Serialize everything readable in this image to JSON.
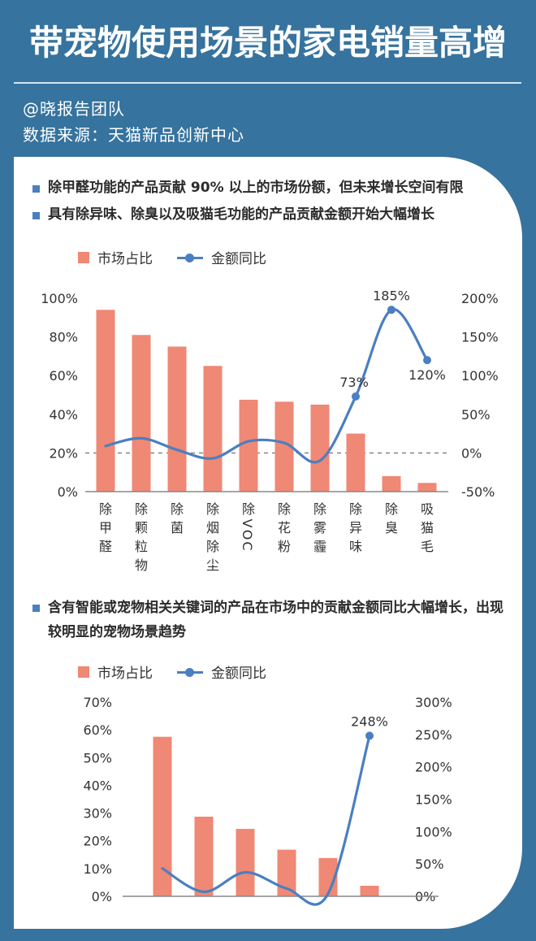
{
  "header": {
    "title": "带宠物使用场景的家电销量高增",
    "author": "@晓报告团队",
    "source": "数据来源：天猫新品创新中心"
  },
  "colors": {
    "background": "#36739e",
    "divider": "#cfe6f5",
    "bar": "#ef8874",
    "line": "#4a7fc1",
    "bullet": "#4a7fc1",
    "text": "#333333"
  },
  "section1": {
    "bullets": [
      "除甲醛功能的产品贡献 90% 以上的市场份额，但未来增长空间有限",
      "具有除异味、除臭以及吸猫毛功能的产品贡献金额开始大幅增长"
    ],
    "legend": {
      "bar": "市场占比",
      "line": "金额同比"
    }
  },
  "section2": {
    "bullets": [
      "含有智能或宠物相关关键词的产品在市场中的贡献金额同比大幅增长，出现较明显的宠物场景趋势"
    ],
    "legend": {
      "bar": "市场占比",
      "line": "金额同比"
    }
  },
  "chart_data": [
    {
      "type": "bar",
      "title": "",
      "xlabel": "",
      "ylabel": "",
      "categories": [
        "除甲醛",
        "除颗粒物",
        "除菌",
        "除烟除尘",
        "除VOC",
        "除花粉",
        "除雾霾",
        "除异味",
        "除臭",
        "吸猫毛"
      ],
      "series": [
        {
          "name": "市场占比",
          "type": "bar",
          "axis": "left",
          "values": [
            94,
            81,
            75,
            65,
            47.5,
            46.5,
            45,
            30,
            8,
            4.5
          ]
        },
        {
          "name": "金额同比",
          "type": "line",
          "axis": "right",
          "values": [
            9,
            19,
            4,
            -7,
            15,
            13,
            -10,
            73,
            185,
            120
          ]
        }
      ],
      "data_labels": [
        {
          "index": 7,
          "text": "73%",
          "pos": "above-left"
        },
        {
          "index": 8,
          "text": "185%",
          "pos": "above"
        },
        {
          "index": 9,
          "text": "120%",
          "pos": "below"
        }
      ],
      "ylim": [
        0,
        100
      ],
      "y_ticks": [
        "100%",
        "80%",
        "60%",
        "40%",
        "20%",
        "0%"
      ],
      "y2lim": [
        -50,
        200
      ],
      "y2_ticks": [
        "200%",
        "150%",
        "100%",
        "50%",
        "0%",
        "-50%"
      ],
      "reference_line": {
        "axis": "right",
        "value": 0,
        "style": "dashed"
      },
      "grid": false,
      "legend_position": "top-left"
    },
    {
      "type": "bar",
      "title": "",
      "xlabel": "",
      "ylabel": "",
      "categories": [
        "",
        "",
        "",
        "",
        "",
        ""
      ],
      "series": [
        {
          "name": "市场占比",
          "type": "bar",
          "axis": "left",
          "values": [
            57.5,
            28.7,
            24.3,
            16.8,
            13.8,
            3.8
          ]
        },
        {
          "name": "金额同比",
          "type": "line",
          "axis": "right",
          "values": [
            43,
            7,
            37,
            12,
            4,
            248
          ]
        }
      ],
      "data_labels": [
        {
          "index": 5,
          "text": "248%",
          "pos": "above"
        }
      ],
      "ylim": [
        0,
        70
      ],
      "y_ticks": [
        "70%",
        "60%",
        "50%",
        "40%",
        "30%",
        "20%",
        "10%",
        "0%"
      ],
      "y2lim": [
        0,
        300
      ],
      "y2_ticks": [
        "300%",
        "250%",
        "200%",
        "150%",
        "100%",
        "50%",
        "0%"
      ],
      "grid": false,
      "legend_position": "top-left"
    }
  ]
}
